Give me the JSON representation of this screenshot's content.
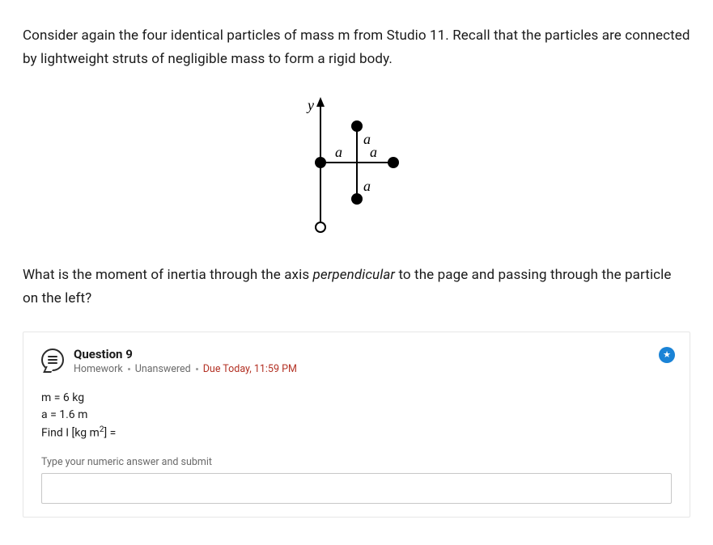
{
  "intro": "Consider again the four identical particles of mass m from Studio 11. Recall that the particles are connected by lightweight struts of negligible mass to form a rigid body.",
  "diagram": {
    "y_label": "y",
    "a_label": "a",
    "particle_radius": 7,
    "axis_stroke": "#000000",
    "hole_radius": 6,
    "font_family": "Georgia, 'Times New Roman', serif",
    "font_size": 18
  },
  "question_before": "What is the moment of inertia through the axis ",
  "question_italic": "perpendicular",
  "question_after": " to the page and passing through the particle on the left?",
  "card": {
    "title": "Question 9",
    "category": "Homework",
    "status": "Unanswered",
    "due": "Due Today, 11:59 PM",
    "star_glyph": "★"
  },
  "given": {
    "m_line": "m = 6 kg",
    "a_line": "a = 1.6 m",
    "find_line_before": "Find I [kg m",
    "find_line_sup": "2",
    "find_line_after": "] ="
  },
  "prompt": "Type your numeric answer and submit",
  "input_value": ""
}
